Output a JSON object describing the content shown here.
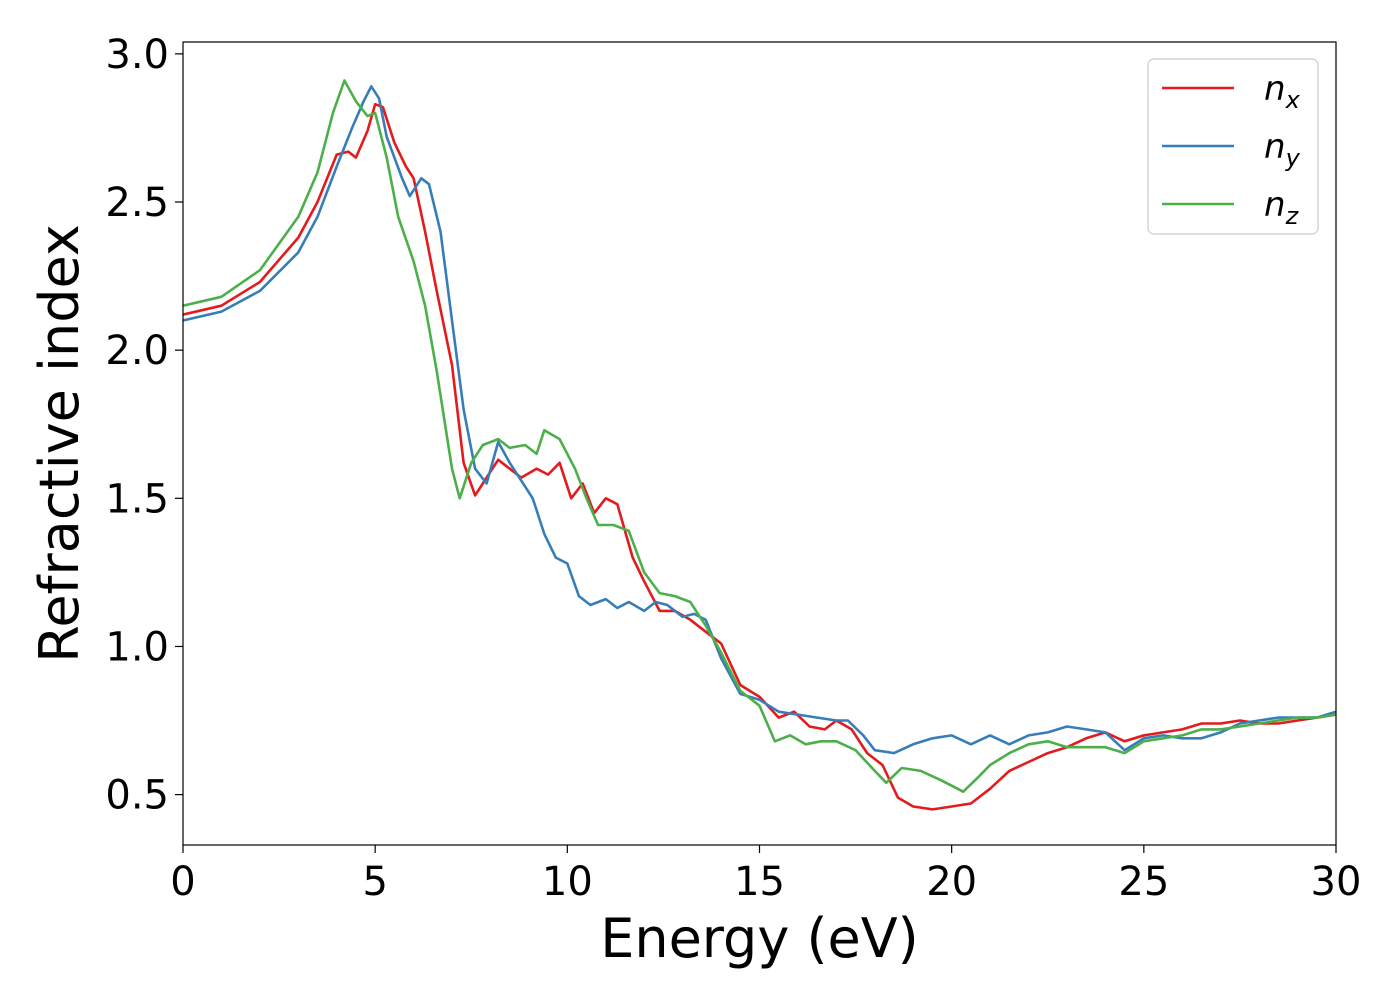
{
  "chart_data": {
    "type": "line",
    "xlabel": "Energy (eV)",
    "ylabel": "Refractive index",
    "xlim": [
      0,
      30
    ],
    "ylim": [
      0.33,
      3.04
    ],
    "xticks": [
      0,
      5,
      10,
      15,
      20,
      25,
      30
    ],
    "xtick_labels": [
      "0",
      "5",
      "10",
      "15",
      "20",
      "25",
      "30"
    ],
    "yticks": [
      0.5,
      1.0,
      1.5,
      2.0,
      2.5,
      3.0
    ],
    "ytick_labels": [
      "0.5",
      "1.0",
      "1.5",
      "2.0",
      "2.5",
      "3.0"
    ],
    "grid": false,
    "legend_position": "top-right",
    "series": [
      {
        "name": "n",
        "subscript": "x",
        "color": "#e41a1c",
        "points": [
          [
            0,
            2.12
          ],
          [
            1,
            2.15
          ],
          [
            2,
            2.23
          ],
          [
            3,
            2.38
          ],
          [
            3.5,
            2.5
          ],
          [
            4,
            2.66
          ],
          [
            4.3,
            2.67
          ],
          [
            4.5,
            2.65
          ],
          [
            4.8,
            2.74
          ],
          [
            5.0,
            2.83
          ],
          [
            5.2,
            2.82
          ],
          [
            5.5,
            2.7
          ],
          [
            5.8,
            2.62
          ],
          [
            6.0,
            2.58
          ],
          [
            6.3,
            2.4
          ],
          [
            6.6,
            2.2
          ],
          [
            7.0,
            1.95
          ],
          [
            7.3,
            1.62
          ],
          [
            7.6,
            1.51
          ],
          [
            8.0,
            1.59
          ],
          [
            8.2,
            1.63
          ],
          [
            8.5,
            1.6
          ],
          [
            8.8,
            1.57
          ],
          [
            9.2,
            1.6
          ],
          [
            9.5,
            1.58
          ],
          [
            9.8,
            1.62
          ],
          [
            10.1,
            1.5
          ],
          [
            10.4,
            1.55
          ],
          [
            10.7,
            1.45
          ],
          [
            11.0,
            1.5
          ],
          [
            11.3,
            1.48
          ],
          [
            11.7,
            1.3
          ],
          [
            12.0,
            1.22
          ],
          [
            12.4,
            1.12
          ],
          [
            12.8,
            1.12
          ],
          [
            13.2,
            1.09
          ],
          [
            13.6,
            1.05
          ],
          [
            14.0,
            1.01
          ],
          [
            14.5,
            0.87
          ],
          [
            15.0,
            0.83
          ],
          [
            15.5,
            0.76
          ],
          [
            15.9,
            0.78
          ],
          [
            16.3,
            0.73
          ],
          [
            16.7,
            0.72
          ],
          [
            17.0,
            0.75
          ],
          [
            17.4,
            0.72
          ],
          [
            17.8,
            0.64
          ],
          [
            18.2,
            0.6
          ],
          [
            18.6,
            0.49
          ],
          [
            19.0,
            0.46
          ],
          [
            19.5,
            0.45
          ],
          [
            20.0,
            0.46
          ],
          [
            20.5,
            0.47
          ],
          [
            21.0,
            0.52
          ],
          [
            21.5,
            0.58
          ],
          [
            22.0,
            0.61
          ],
          [
            22.5,
            0.64
          ],
          [
            23.0,
            0.66
          ],
          [
            23.5,
            0.69
          ],
          [
            24.0,
            0.71
          ],
          [
            24.5,
            0.68
          ],
          [
            25.0,
            0.7
          ],
          [
            25.5,
            0.71
          ],
          [
            26.0,
            0.72
          ],
          [
            26.5,
            0.74
          ],
          [
            27.0,
            0.74
          ],
          [
            27.5,
            0.75
          ],
          [
            28.0,
            0.74
          ],
          [
            28.5,
            0.74
          ],
          [
            29.0,
            0.75
          ],
          [
            29.5,
            0.76
          ],
          [
            30.0,
            0.77
          ]
        ]
      },
      {
        "name": "n",
        "subscript": "y",
        "color": "#377eb8",
        "points": [
          [
            0,
            2.1
          ],
          [
            1,
            2.13
          ],
          [
            2,
            2.2
          ],
          [
            3,
            2.33
          ],
          [
            3.5,
            2.45
          ],
          [
            4,
            2.62
          ],
          [
            4.4,
            2.75
          ],
          [
            4.7,
            2.84
          ],
          [
            4.9,
            2.89
          ],
          [
            5.1,
            2.85
          ],
          [
            5.3,
            2.72
          ],
          [
            5.7,
            2.58
          ],
          [
            5.9,
            2.52
          ],
          [
            6.2,
            2.58
          ],
          [
            6.4,
            2.56
          ],
          [
            6.7,
            2.4
          ],
          [
            7.0,
            2.1
          ],
          [
            7.3,
            1.8
          ],
          [
            7.6,
            1.6
          ],
          [
            7.9,
            1.55
          ],
          [
            8.2,
            1.69
          ],
          [
            8.5,
            1.62
          ],
          [
            8.8,
            1.56
          ],
          [
            9.1,
            1.5
          ],
          [
            9.4,
            1.38
          ],
          [
            9.7,
            1.3
          ],
          [
            10.0,
            1.28
          ],
          [
            10.3,
            1.17
          ],
          [
            10.6,
            1.14
          ],
          [
            11.0,
            1.16
          ],
          [
            11.3,
            1.13
          ],
          [
            11.6,
            1.15
          ],
          [
            12.0,
            1.12
          ],
          [
            12.3,
            1.15
          ],
          [
            12.6,
            1.14
          ],
          [
            13.0,
            1.1
          ],
          [
            13.3,
            1.11
          ],
          [
            13.6,
            1.09
          ],
          [
            14.0,
            0.96
          ],
          [
            14.5,
            0.84
          ],
          [
            15.0,
            0.82
          ],
          [
            15.5,
            0.78
          ],
          [
            16.0,
            0.77
          ],
          [
            16.5,
            0.76
          ],
          [
            17.0,
            0.75
          ],
          [
            17.3,
            0.75
          ],
          [
            17.7,
            0.7
          ],
          [
            18.0,
            0.65
          ],
          [
            18.5,
            0.64
          ],
          [
            19.0,
            0.67
          ],
          [
            19.5,
            0.69
          ],
          [
            20.0,
            0.7
          ],
          [
            20.5,
            0.67
          ],
          [
            21.0,
            0.7
          ],
          [
            21.5,
            0.67
          ],
          [
            22.0,
            0.7
          ],
          [
            22.5,
            0.71
          ],
          [
            23.0,
            0.73
          ],
          [
            23.5,
            0.72
          ],
          [
            24.0,
            0.71
          ],
          [
            24.5,
            0.65
          ],
          [
            25.0,
            0.69
          ],
          [
            25.5,
            0.7
          ],
          [
            26.0,
            0.69
          ],
          [
            26.5,
            0.69
          ],
          [
            27.0,
            0.71
          ],
          [
            27.5,
            0.74
          ],
          [
            28.0,
            0.75
          ],
          [
            28.5,
            0.76
          ],
          [
            29.0,
            0.76
          ],
          [
            29.5,
            0.76
          ],
          [
            30.0,
            0.78
          ]
        ]
      },
      {
        "name": "n",
        "subscript": "z",
        "color": "#4daf4a",
        "points": [
          [
            0,
            2.15
          ],
          [
            1,
            2.18
          ],
          [
            2,
            2.27
          ],
          [
            3,
            2.45
          ],
          [
            3.5,
            2.6
          ],
          [
            3.9,
            2.8
          ],
          [
            4.2,
            2.91
          ],
          [
            4.5,
            2.84
          ],
          [
            4.8,
            2.79
          ],
          [
            5.0,
            2.8
          ],
          [
            5.3,
            2.65
          ],
          [
            5.6,
            2.45
          ],
          [
            6.0,
            2.3
          ],
          [
            6.3,
            2.15
          ],
          [
            6.6,
            1.93
          ],
          [
            7.0,
            1.6
          ],
          [
            7.2,
            1.5
          ],
          [
            7.5,
            1.62
          ],
          [
            7.8,
            1.68
          ],
          [
            8.2,
            1.7
          ],
          [
            8.5,
            1.67
          ],
          [
            8.9,
            1.68
          ],
          [
            9.2,
            1.65
          ],
          [
            9.4,
            1.73
          ],
          [
            9.8,
            1.7
          ],
          [
            10.2,
            1.6
          ],
          [
            10.5,
            1.5
          ],
          [
            10.8,
            1.41
          ],
          [
            11.2,
            1.41
          ],
          [
            11.6,
            1.39
          ],
          [
            12.0,
            1.25
          ],
          [
            12.4,
            1.18
          ],
          [
            12.8,
            1.17
          ],
          [
            13.2,
            1.15
          ],
          [
            13.6,
            1.07
          ],
          [
            14.0,
            0.98
          ],
          [
            14.5,
            0.85
          ],
          [
            15.0,
            0.8
          ],
          [
            15.4,
            0.68
          ],
          [
            15.8,
            0.7
          ],
          [
            16.2,
            0.67
          ],
          [
            16.6,
            0.68
          ],
          [
            17.0,
            0.68
          ],
          [
            17.5,
            0.65
          ],
          [
            18.0,
            0.58
          ],
          [
            18.3,
            0.54
          ],
          [
            18.7,
            0.59
          ],
          [
            19.2,
            0.58
          ],
          [
            19.7,
            0.55
          ],
          [
            20.0,
            0.53
          ],
          [
            20.3,
            0.51
          ],
          [
            20.7,
            0.56
          ],
          [
            21.0,
            0.6
          ],
          [
            21.5,
            0.64
          ],
          [
            22.0,
            0.67
          ],
          [
            22.5,
            0.68
          ],
          [
            23.0,
            0.66
          ],
          [
            23.5,
            0.66
          ],
          [
            24.0,
            0.66
          ],
          [
            24.5,
            0.64
          ],
          [
            25.0,
            0.68
          ],
          [
            25.5,
            0.69
          ],
          [
            26.0,
            0.7
          ],
          [
            26.5,
            0.72
          ],
          [
            27.0,
            0.72
          ],
          [
            27.5,
            0.73
          ],
          [
            28.0,
            0.74
          ],
          [
            28.5,
            0.75
          ],
          [
            29.0,
            0.76
          ],
          [
            29.5,
            0.76
          ],
          [
            30.0,
            0.77
          ]
        ]
      }
    ]
  }
}
